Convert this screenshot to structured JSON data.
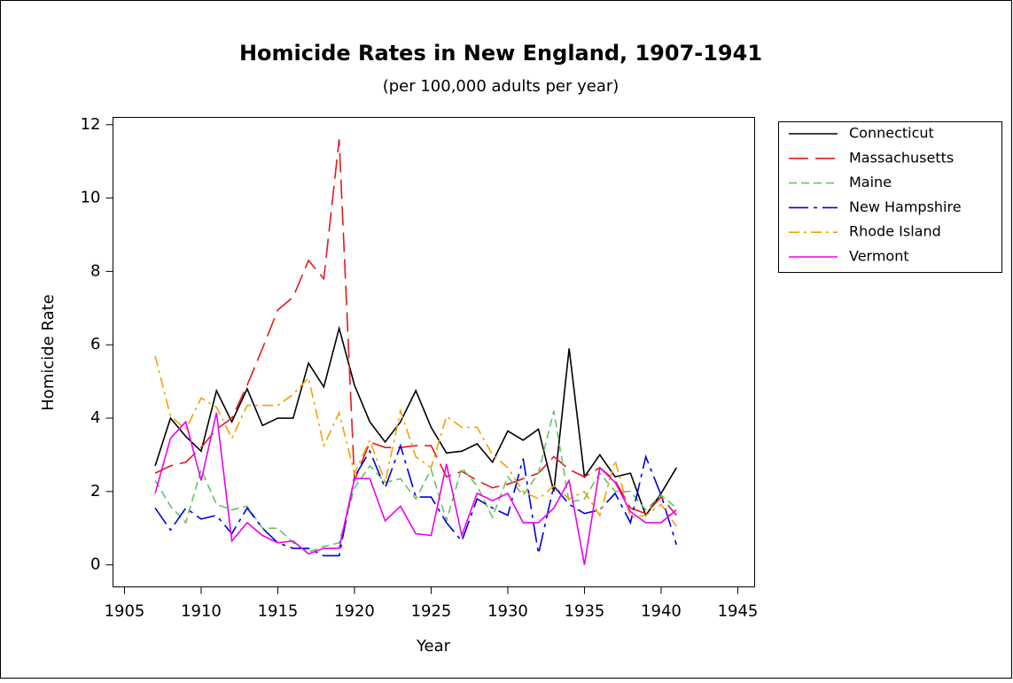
{
  "chart_data": {
    "type": "line",
    "title": "Homicide Rates in New England, 1907-1941",
    "subtitle": "(per 100,000 adults per year)",
    "x_label": "Year",
    "y_label": "Homicide Rate",
    "x": [
      1907,
      1908,
      1909,
      1910,
      1911,
      1912,
      1913,
      1914,
      1915,
      1916,
      1917,
      1918,
      1919,
      1920,
      1921,
      1922,
      1923,
      1924,
      1925,
      1926,
      1927,
      1928,
      1929,
      1930,
      1931,
      1932,
      1933,
      1934,
      1935,
      1936,
      1937,
      1938,
      1939,
      1940,
      1941
    ],
    "series": [
      {
        "name": "Connecticut",
        "color": "#000000",
        "dash": "solid",
        "values": [
          2.7,
          4.0,
          3.5,
          3.1,
          4.75,
          3.9,
          4.8,
          3.8,
          4.0,
          4.0,
          5.5,
          4.85,
          6.45,
          4.9,
          3.9,
          3.35,
          3.9,
          4.75,
          3.75,
          3.05,
          3.1,
          3.3,
          2.8,
          3.65,
          3.4,
          3.7,
          2.0,
          5.9,
          2.4,
          3.0,
          2.4,
          2.5,
          1.35,
          1.95,
          2.65
        ]
      },
      {
        "name": "Massachusetts",
        "color": "#e41a1c",
        "dash": "long-dash",
        "values": [
          2.5,
          2.7,
          2.8,
          3.2,
          3.7,
          4.0,
          4.9,
          5.9,
          6.95,
          7.3,
          8.3,
          7.8,
          11.6,
          2.3,
          3.35,
          3.2,
          3.2,
          3.25,
          3.25,
          2.4,
          2.55,
          2.3,
          2.1,
          2.2,
          2.35,
          2.5,
          2.95,
          2.6,
          2.4,
          2.65,
          2.3,
          1.55,
          1.4,
          1.85,
          1.35
        ]
      },
      {
        "name": "Maine",
        "color": "#66c266",
        "dash": "dash",
        "values": [
          2.3,
          1.6,
          1.15,
          2.6,
          1.65,
          1.5,
          1.6,
          1.0,
          1.0,
          0.6,
          0.35,
          0.5,
          0.6,
          2.1,
          2.7,
          2.25,
          2.35,
          1.8,
          2.6,
          1.2,
          2.65,
          2.15,
          1.3,
          2.4,
          1.9,
          2.5,
          4.2,
          1.7,
          1.8,
          2.5,
          2.0,
          2.0,
          1.5,
          1.9,
          1.55
        ]
      },
      {
        "name": "New Hampshire",
        "color": "#0000dd",
        "dash": "dash-dot-long",
        "values": [
          1.55,
          0.95,
          1.55,
          1.25,
          1.35,
          0.85,
          1.55,
          1.0,
          0.6,
          0.45,
          0.45,
          0.25,
          0.25,
          2.4,
          3.1,
          2.1,
          3.25,
          1.85,
          1.85,
          1.15,
          0.65,
          1.8,
          1.55,
          1.35,
          2.9,
          0.3,
          2.15,
          1.65,
          1.4,
          1.5,
          1.95,
          1.15,
          2.95,
          1.9,
          0.55
        ]
      },
      {
        "name": "Rhode Island",
        "color": "#f5a000",
        "dash": "dash-dot",
        "values": [
          5.7,
          4.05,
          3.7,
          4.55,
          4.3,
          3.45,
          4.35,
          4.35,
          4.35,
          4.65,
          5.1,
          3.25,
          4.15,
          2.5,
          3.4,
          2.25,
          4.2,
          2.95,
          2.65,
          4.05,
          3.75,
          3.75,
          3.0,
          2.65,
          2.0,
          1.8,
          2.15,
          1.8,
          2.0,
          1.35,
          2.85,
          1.3,
          1.35,
          1.65,
          1.05
        ]
      },
      {
        "name": "Vermont",
        "color": "#ee00ee",
        "dash": "solid",
        "values": [
          1.95,
          3.45,
          3.9,
          2.3,
          4.15,
          0.65,
          1.15,
          0.8,
          0.6,
          0.65,
          0.3,
          0.45,
          0.45,
          2.35,
          2.35,
          1.2,
          1.6,
          0.85,
          0.8,
          2.75,
          0.8,
          1.95,
          1.75,
          1.95,
          1.15,
          1.15,
          1.55,
          2.3,
          0.0,
          2.65,
          2.25,
          1.45,
          1.15,
          1.15,
          1.5
        ]
      }
    ],
    "xlim": [
      1904.25,
      1946.1
    ],
    "xticks": [
      1905,
      1910,
      1915,
      1920,
      1925,
      1930,
      1935,
      1940,
      1945
    ],
    "ylim": [
      -0.6,
      12.2
    ],
    "yticks": [
      0,
      2,
      4,
      6,
      8,
      10,
      12
    ],
    "legend": "right"
  }
}
